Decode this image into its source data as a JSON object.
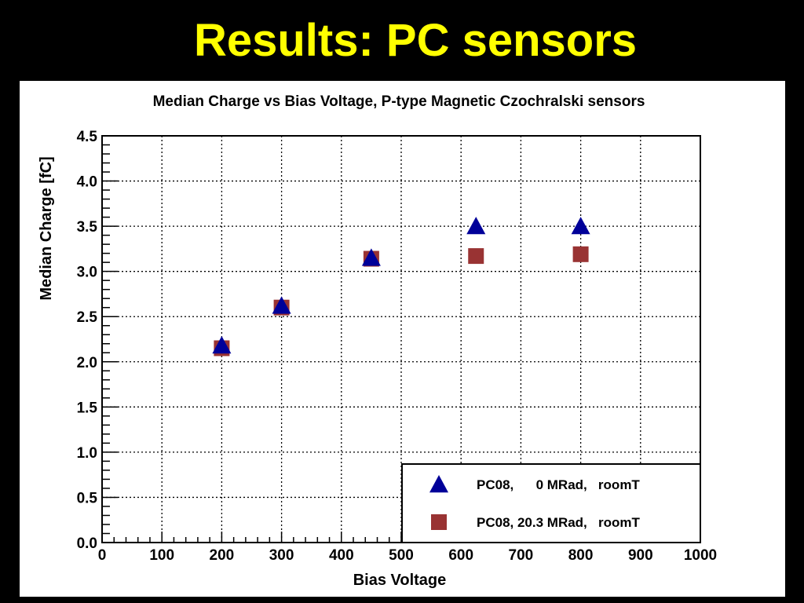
{
  "slide": {
    "title": "Results: PC sensors"
  },
  "chart_data": {
    "type": "scatter",
    "title": "Median Charge vs Bias Voltage, P-type Magnetic Czochralski sensors",
    "xlabel": "Bias Voltage",
    "ylabel": "Median Charge [fC]",
    "xlim": [
      0,
      1000
    ],
    "ylim": [
      0.0,
      4.5
    ],
    "xticks": [
      "0",
      "100",
      "200",
      "300",
      "400",
      "500",
      "600",
      "700",
      "800",
      "900",
      "1000"
    ],
    "yticks": [
      "0.0",
      "0.5",
      "1.0",
      "1.5",
      "2.0",
      "2.5",
      "3.0",
      "3.5",
      "4.0",
      "4.5"
    ],
    "grid": true,
    "legend_position": "bottom-right",
    "series": [
      {
        "name": "PC08,      0 MRad,   roomT",
        "marker": "triangle",
        "color": "#000099",
        "x": [
          200,
          300,
          450,
          625,
          800
        ],
        "y": [
          2.18,
          2.62,
          3.15,
          3.5,
          3.5
        ]
      },
      {
        "name": "PC08, 20.3 MRad,   roomT",
        "marker": "square",
        "color": "#993333",
        "x": [
          200,
          300,
          450,
          625,
          800
        ],
        "y": [
          2.15,
          2.6,
          3.14,
          3.17,
          3.19
        ]
      }
    ]
  }
}
